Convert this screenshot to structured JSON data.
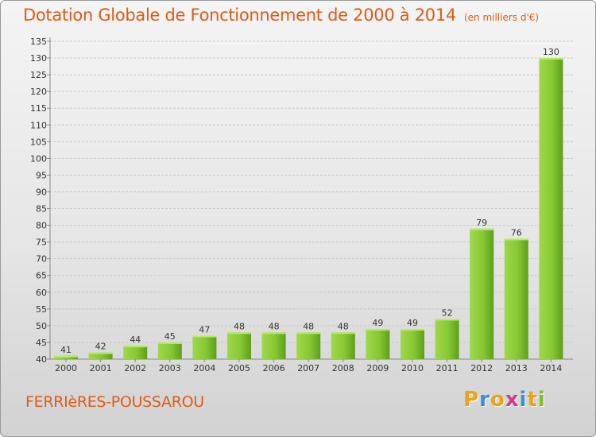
{
  "chart_data": {
    "type": "bar",
    "title": "Dotation Globale de Fonctionnement de 2000 à 2014",
    "unit": "(en milliers d'€)",
    "categories": [
      "2000",
      "2001",
      "2002",
      "2003",
      "2004",
      "2005",
      "2006",
      "2007",
      "2008",
      "2009",
      "2010",
      "2011",
      "2012",
      "2013",
      "2014"
    ],
    "values": [
      41,
      42,
      44,
      45,
      47,
      48,
      48,
      48,
      48,
      49,
      49,
      52,
      79,
      76,
      130
    ],
    "ylim": [
      40,
      135
    ],
    "ytick_step": 5,
    "xlabel": "",
    "ylabel": "",
    "grid": true,
    "bar_color": "#7cbf2c"
  },
  "footer": {
    "place": "FERRIèRES-POUSSAROU",
    "logo_letters": [
      "P",
      "r",
      "o",
      "x",
      "i",
      "t",
      "i"
    ],
    "logo_colors": [
      "#e8a317",
      "#3a8fd6",
      "#e8a317",
      "#d23c8a",
      "#3a8fd6",
      "#e8a317",
      "#7cbf2c"
    ]
  }
}
